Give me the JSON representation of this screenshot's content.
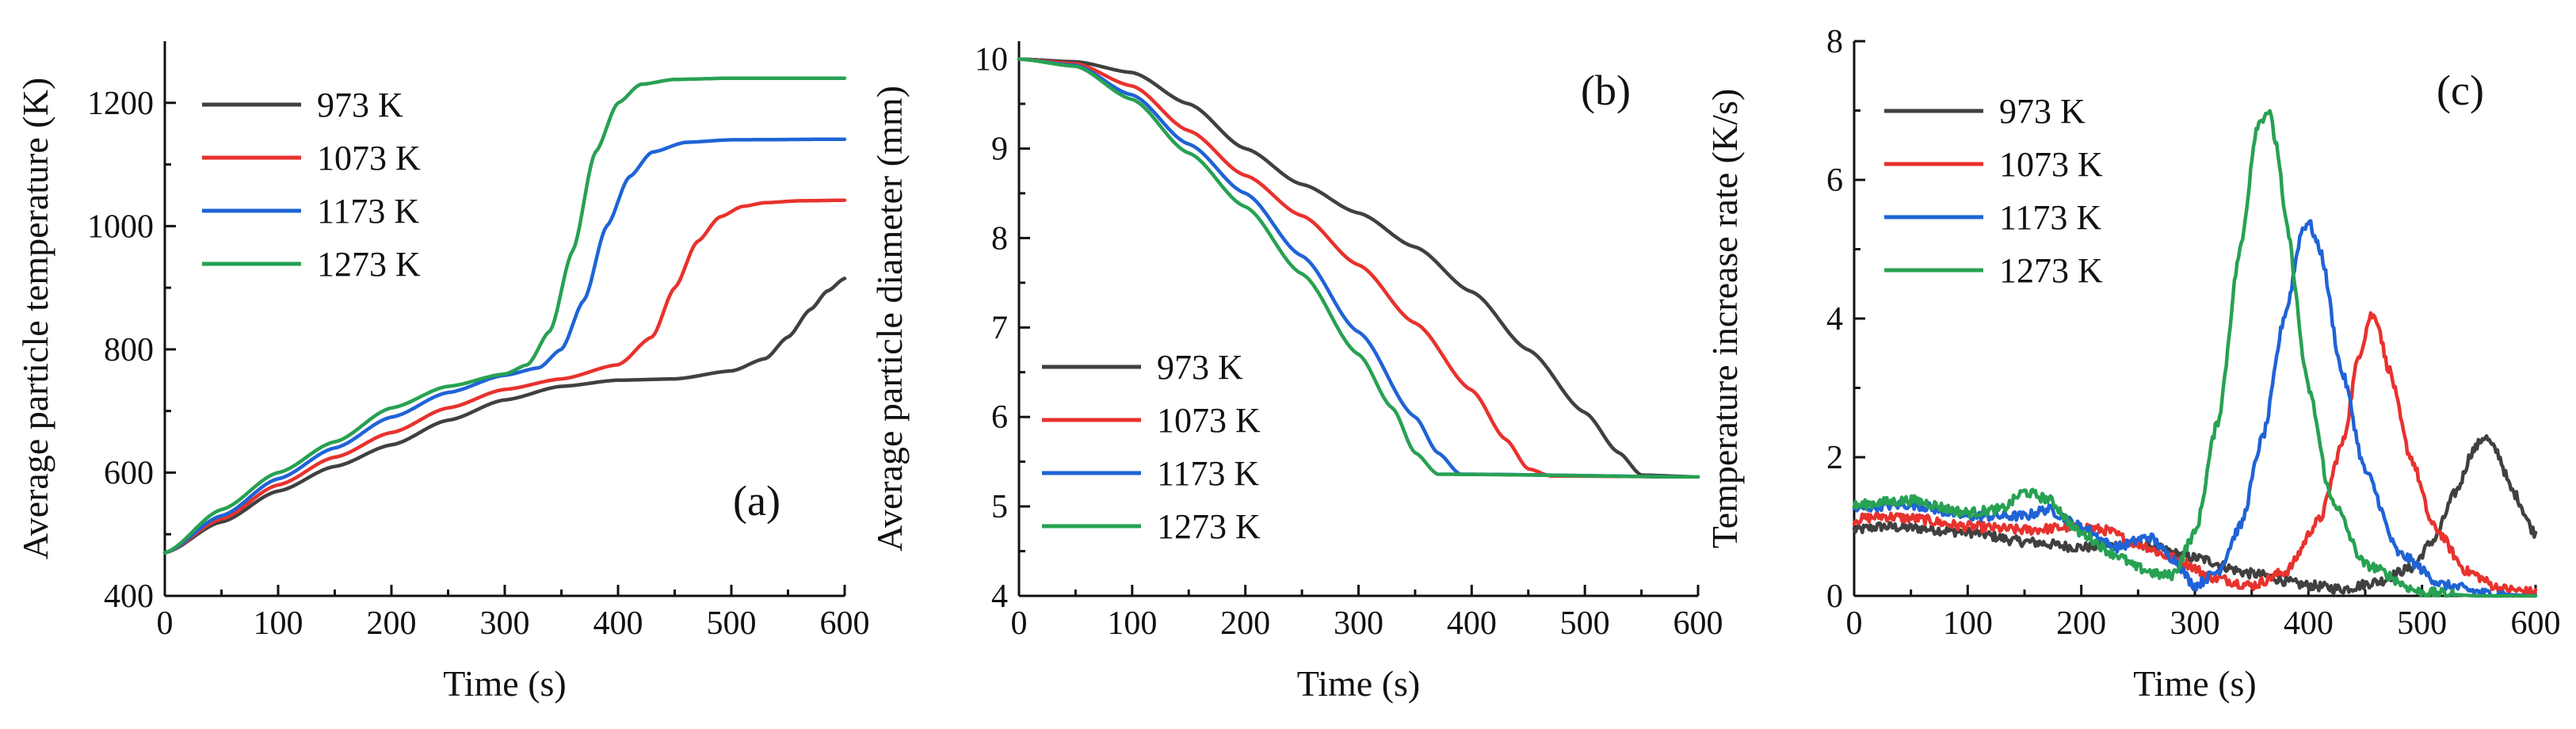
{
  "colors": {
    "973 K": "#404040",
    "1073 K": "#e8322d",
    "1173 K": "#1f63d6",
    "1273 K": "#27a152"
  },
  "chart_data": [
    {
      "type": "line",
      "panel_label": "(a)",
      "xlabel": "Time (s)",
      "ylabel": "Average particle temperature (K)",
      "xlim": [
        0,
        600
      ],
      "ylim": [
        400,
        1300
      ],
      "xticks": [
        "0",
        "100",
        "200",
        "300",
        "400",
        "500",
        "600"
      ],
      "yticks": [
        "400",
        "600",
        "800",
        "1000",
        "1200"
      ],
      "legend_position": "top-left",
      "series": [
        {
          "name": "973 K",
          "x": [
            0,
            50,
            100,
            150,
            200,
            250,
            300,
            350,
            400,
            450,
            500,
            530,
            550,
            570,
            585,
            600
          ],
          "y": [
            470,
            520,
            570,
            610,
            645,
            685,
            718,
            740,
            750,
            752,
            765,
            785,
            820,
            865,
            895,
            915
          ]
        },
        {
          "name": "1073 K",
          "x": [
            0,
            50,
            100,
            150,
            200,
            250,
            300,
            350,
            400,
            430,
            450,
            470,
            490,
            510,
            530,
            560,
            600
          ],
          "y": [
            470,
            525,
            580,
            625,
            665,
            705,
            735,
            752,
            775,
            820,
            900,
            975,
            1015,
            1032,
            1038,
            1041,
            1042
          ]
        },
        {
          "name": "1173 K",
          "x": [
            0,
            50,
            100,
            150,
            200,
            250,
            300,
            330,
            350,
            370,
            390,
            410,
            430,
            460,
            500,
            600
          ],
          "y": [
            470,
            530,
            590,
            640,
            690,
            730,
            758,
            770,
            800,
            880,
            1000,
            1080,
            1120,
            1136,
            1140,
            1141
          ]
        },
        {
          "name": "1273 K",
          "x": [
            0,
            50,
            100,
            150,
            200,
            250,
            300,
            320,
            340,
            360,
            380,
            400,
            420,
            450,
            500,
            600
          ],
          "y": [
            470,
            540,
            600,
            650,
            705,
            740,
            760,
            775,
            830,
            960,
            1120,
            1200,
            1230,
            1238,
            1240,
            1240
          ]
        }
      ]
    },
    {
      "type": "line",
      "panel_label": "(b)",
      "xlabel": "Time (s)",
      "ylabel": "Average particle diameter (mm)",
      "xlim": [
        0,
        600
      ],
      "ylim": [
        4,
        10.2
      ],
      "xticks": [
        "0",
        "100",
        "200",
        "300",
        "400",
        "500",
        "600"
      ],
      "yticks": [
        "4",
        "5",
        "6",
        "7",
        "8",
        "9",
        "10"
      ],
      "legend_position": "bottom-left",
      "series": [
        {
          "name": "973 K",
          "x": [
            0,
            50,
            100,
            150,
            200,
            250,
            300,
            350,
            400,
            450,
            500,
            530,
            550,
            600
          ],
          "y": [
            10,
            9.97,
            9.85,
            9.5,
            9.0,
            8.6,
            8.28,
            7.9,
            7.4,
            6.75,
            6.05,
            5.6,
            5.35,
            5.33
          ]
        },
        {
          "name": "1073 K",
          "x": [
            0,
            50,
            100,
            150,
            200,
            250,
            300,
            350,
            400,
            430,
            450,
            470,
            600
          ],
          "y": [
            10,
            9.95,
            9.7,
            9.2,
            8.7,
            8.25,
            7.7,
            7.05,
            6.3,
            5.75,
            5.42,
            5.34,
            5.33
          ]
        },
        {
          "name": "1173 K",
          "x": [
            0,
            50,
            100,
            150,
            200,
            250,
            300,
            350,
            370,
            390,
            600
          ],
          "y": [
            10,
            9.93,
            9.6,
            9.05,
            8.5,
            7.8,
            6.95,
            6.0,
            5.6,
            5.36,
            5.33
          ]
        },
        {
          "name": "1273 K",
          "x": [
            0,
            50,
            100,
            150,
            200,
            250,
            300,
            330,
            350,
            370,
            600
          ],
          "y": [
            10,
            9.92,
            9.55,
            8.95,
            8.35,
            7.6,
            6.7,
            6.1,
            5.6,
            5.36,
            5.33
          ]
        }
      ]
    },
    {
      "type": "line",
      "panel_label": "(c)",
      "xlabel": "Time (s)",
      "ylabel": "Temperature increase rate (K/s)",
      "xlim": [
        0,
        600
      ],
      "ylim": [
        0,
        8
      ],
      "xticks": [
        "0",
        "100",
        "200",
        "300",
        "400",
        "500",
        "600"
      ],
      "yticks": [
        "0",
        "2",
        "4",
        "6",
        "8"
      ],
      "legend_position": "top-left",
      "series": [
        {
          "name": "973 K",
          "x": [
            0,
            25,
            50,
            100,
            150,
            200,
            250,
            300,
            350,
            400,
            430,
            460,
            490,
            510,
            530,
            545,
            555,
            565,
            580,
            600
          ],
          "y": [
            0.95,
            1.0,
            0.98,
            0.92,
            0.78,
            0.7,
            0.75,
            0.55,
            0.32,
            0.15,
            0.1,
            0.2,
            0.4,
            0.8,
            1.5,
            2.1,
            2.3,
            2.1,
            1.5,
            0.9
          ]
        },
        {
          "name": "1073 K",
          "x": [
            0,
            25,
            50,
            100,
            150,
            200,
            220,
            250,
            280,
            320,
            350,
            380,
            410,
            430,
            445,
            455,
            460,
            470,
            490,
            510,
            540,
            570,
            600
          ],
          "y": [
            1.1,
            1.15,
            1.12,
            1.0,
            0.95,
            1.0,
            0.95,
            0.75,
            0.55,
            0.25,
            0.15,
            0.35,
            1.1,
            2.2,
            3.5,
            4.05,
            4.0,
            3.3,
            2.0,
            1.0,
            0.35,
            0.1,
            0.05
          ]
        },
        {
          "name": "1173 K",
          "x": [
            0,
            25,
            50,
            100,
            150,
            170,
            200,
            230,
            260,
            280,
            300,
            320,
            340,
            360,
            380,
            395,
            400,
            410,
            430,
            450,
            480,
            520,
            560,
            600
          ],
          "y": [
            1.25,
            1.3,
            1.32,
            1.15,
            1.15,
            1.25,
            1.0,
            0.7,
            0.85,
            0.55,
            0.15,
            0.35,
            1.0,
            2.3,
            4.1,
            5.3,
            5.4,
            5.0,
            3.2,
            1.8,
            0.6,
            0.15,
            0.03,
            0.0
          ]
        },
        {
          "name": "1273 K",
          "x": [
            0,
            25,
            50,
            100,
            130,
            150,
            170,
            200,
            230,
            250,
            270,
            280,
            300,
            320,
            340,
            355,
            365,
            372,
            380,
            400,
            420,
            450,
            500,
            550,
            600
          ],
          "y": [
            1.3,
            1.35,
            1.38,
            1.2,
            1.25,
            1.5,
            1.4,
            0.9,
            0.6,
            0.4,
            0.3,
            0.3,
            0.9,
            2.5,
            5.0,
            6.8,
            7.0,
            6.5,
            5.4,
            3.0,
            1.4,
            0.45,
            0.05,
            0.0,
            0.0
          ]
        }
      ]
    }
  ]
}
